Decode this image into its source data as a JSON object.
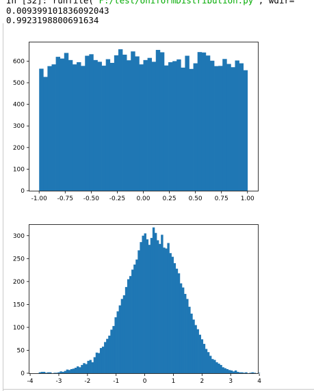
{
  "console": {
    "prompt": "In [32]:",
    "command_text": " runfile(",
    "command_string": "'F:/test/UniformDistribution.py'",
    "command_tail": ", wdir=",
    "output_lines": [
      "0.009399101836092043",
      "0.9923198800691634"
    ]
  },
  "colors": {
    "bar": "#1f77b4",
    "axes": "#000000",
    "prompt": "#00aa00"
  },
  "chart_data": [
    {
      "type": "bar",
      "title": "",
      "xlabel": "",
      "ylabel": "",
      "xlim": [
        -1.1,
        1.1
      ],
      "ylim": [
        0,
        690
      ],
      "x_ticks": [
        "-1.00",
        "-0.75",
        "-0.50",
        "-0.25",
        "0.00",
        "0.25",
        "0.50",
        "0.75",
        "1.00"
      ],
      "x_tick_values": [
        -1,
        -0.75,
        -0.5,
        -0.25,
        0,
        0.25,
        0.5,
        0.75,
        1
      ],
      "y_ticks": [
        "0",
        "100",
        "200",
        "300",
        "400",
        "500",
        "600"
      ],
      "y_tick_values": [
        0,
        100,
        200,
        300,
        400,
        500,
        600
      ],
      "bin_start": -1.0,
      "bin_width": 0.04,
      "values": [
        565,
        527,
        577,
        585,
        620,
        612,
        638,
        605,
        585,
        595,
        578,
        625,
        632,
        605,
        597,
        579,
        609,
        592,
        627,
        655,
        630,
        604,
        645,
        622,
        585,
        605,
        615,
        597,
        652,
        641,
        580,
        595,
        600,
        608,
        570,
        625,
        564,
        590,
        642,
        640,
        626,
        602,
        577,
        578,
        610,
        587,
        572,
        603,
        590,
        558
      ]
    },
    {
      "type": "bar",
      "title": "",
      "xlabel": "",
      "ylabel": "",
      "xlim": [
        -4.05,
        3.95
      ],
      "ylim": [
        0,
        325
      ],
      "x_ticks": [
        "-4",
        "-3",
        "-2",
        "-1",
        "0",
        "1",
        "2",
        "3",
        "4"
      ],
      "x_tick_values": [
        -4,
        -3,
        -2,
        -1,
        0,
        1,
        2,
        3,
        4
      ],
      "y_ticks": [
        "0",
        "50",
        "100",
        "150",
        "200",
        "250",
        "300"
      ],
      "y_tick_values": [
        0,
        50,
        100,
        150,
        200,
        250,
        300
      ],
      "bin_start": -3.7,
      "bin_width": 0.0735,
      "values": [
        2,
        3,
        3,
        1,
        2,
        2,
        0,
        1,
        1,
        2,
        4,
        3,
        5,
        8,
        7,
        9,
        10,
        12,
        15,
        13,
        18,
        22,
        20,
        27,
        29,
        24,
        35,
        45,
        44,
        55,
        58,
        68,
        75,
        82,
        95,
        103,
        122,
        135,
        148,
        162,
        170,
        188,
        205,
        212,
        226,
        237,
        248,
        268,
        286,
        300,
        305,
        292,
        280,
        295,
        318,
        306,
        290,
        282,
        302,
        274,
        272,
        284,
        262,
        254,
        240,
        228,
        218,
        196,
        187,
        173,
        162,
        145,
        130,
        117,
        105,
        96,
        84,
        74,
        64,
        53,
        46,
        38,
        31,
        29,
        24,
        21,
        18,
        13,
        11,
        9,
        7,
        6,
        4,
        6,
        3,
        2,
        2,
        1,
        2,
        0,
        1,
        2,
        1,
        0,
        1,
        0,
        0,
        0,
        0
      ]
    }
  ]
}
